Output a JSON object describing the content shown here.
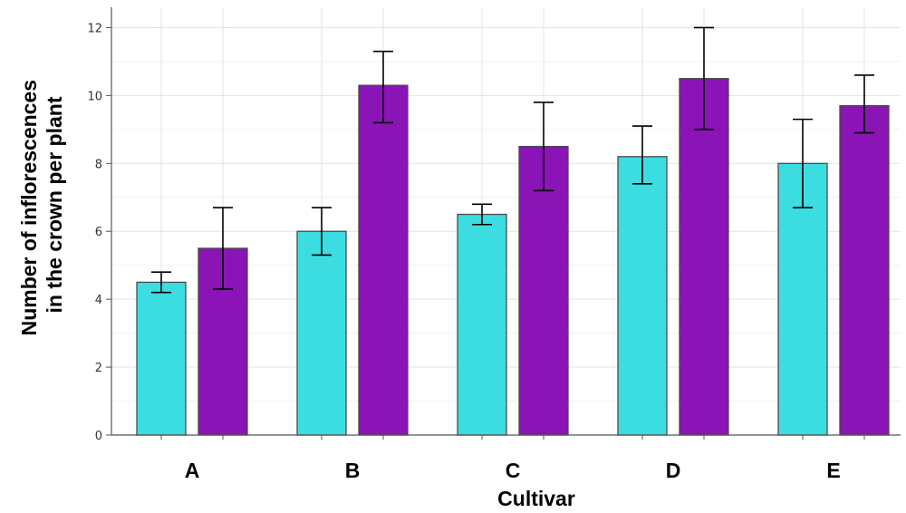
{
  "chart_data": {
    "type": "bar",
    "title": "",
    "xlabel": "Cultivar",
    "ylabel": [
      "Number of inflorescences",
      "in the crown per plant"
    ],
    "categories": [
      "A",
      "B",
      "C",
      "D",
      "E"
    ],
    "ylim": [
      0,
      12.6
    ],
    "yticks": [
      0,
      2,
      4,
      6,
      8,
      10,
      12
    ],
    "grid": true,
    "legend": "none",
    "series": [
      {
        "color": "#3cdde0",
        "values": [
          4.5,
          6.0,
          6.5,
          8.2,
          8.0
        ],
        "error_low": [
          4.2,
          5.3,
          6.2,
          7.4,
          6.7
        ],
        "error_high": [
          4.8,
          6.7,
          6.8,
          9.1,
          9.3
        ]
      },
      {
        "color": "#8a14b5",
        "values": [
          5.5,
          10.3,
          8.5,
          10.5,
          9.7
        ],
        "error_low": [
          4.3,
          9.2,
          7.2,
          9.0,
          8.9
        ],
        "error_high": [
          6.7,
          11.3,
          9.8,
          12.0,
          10.6
        ]
      }
    ]
  }
}
